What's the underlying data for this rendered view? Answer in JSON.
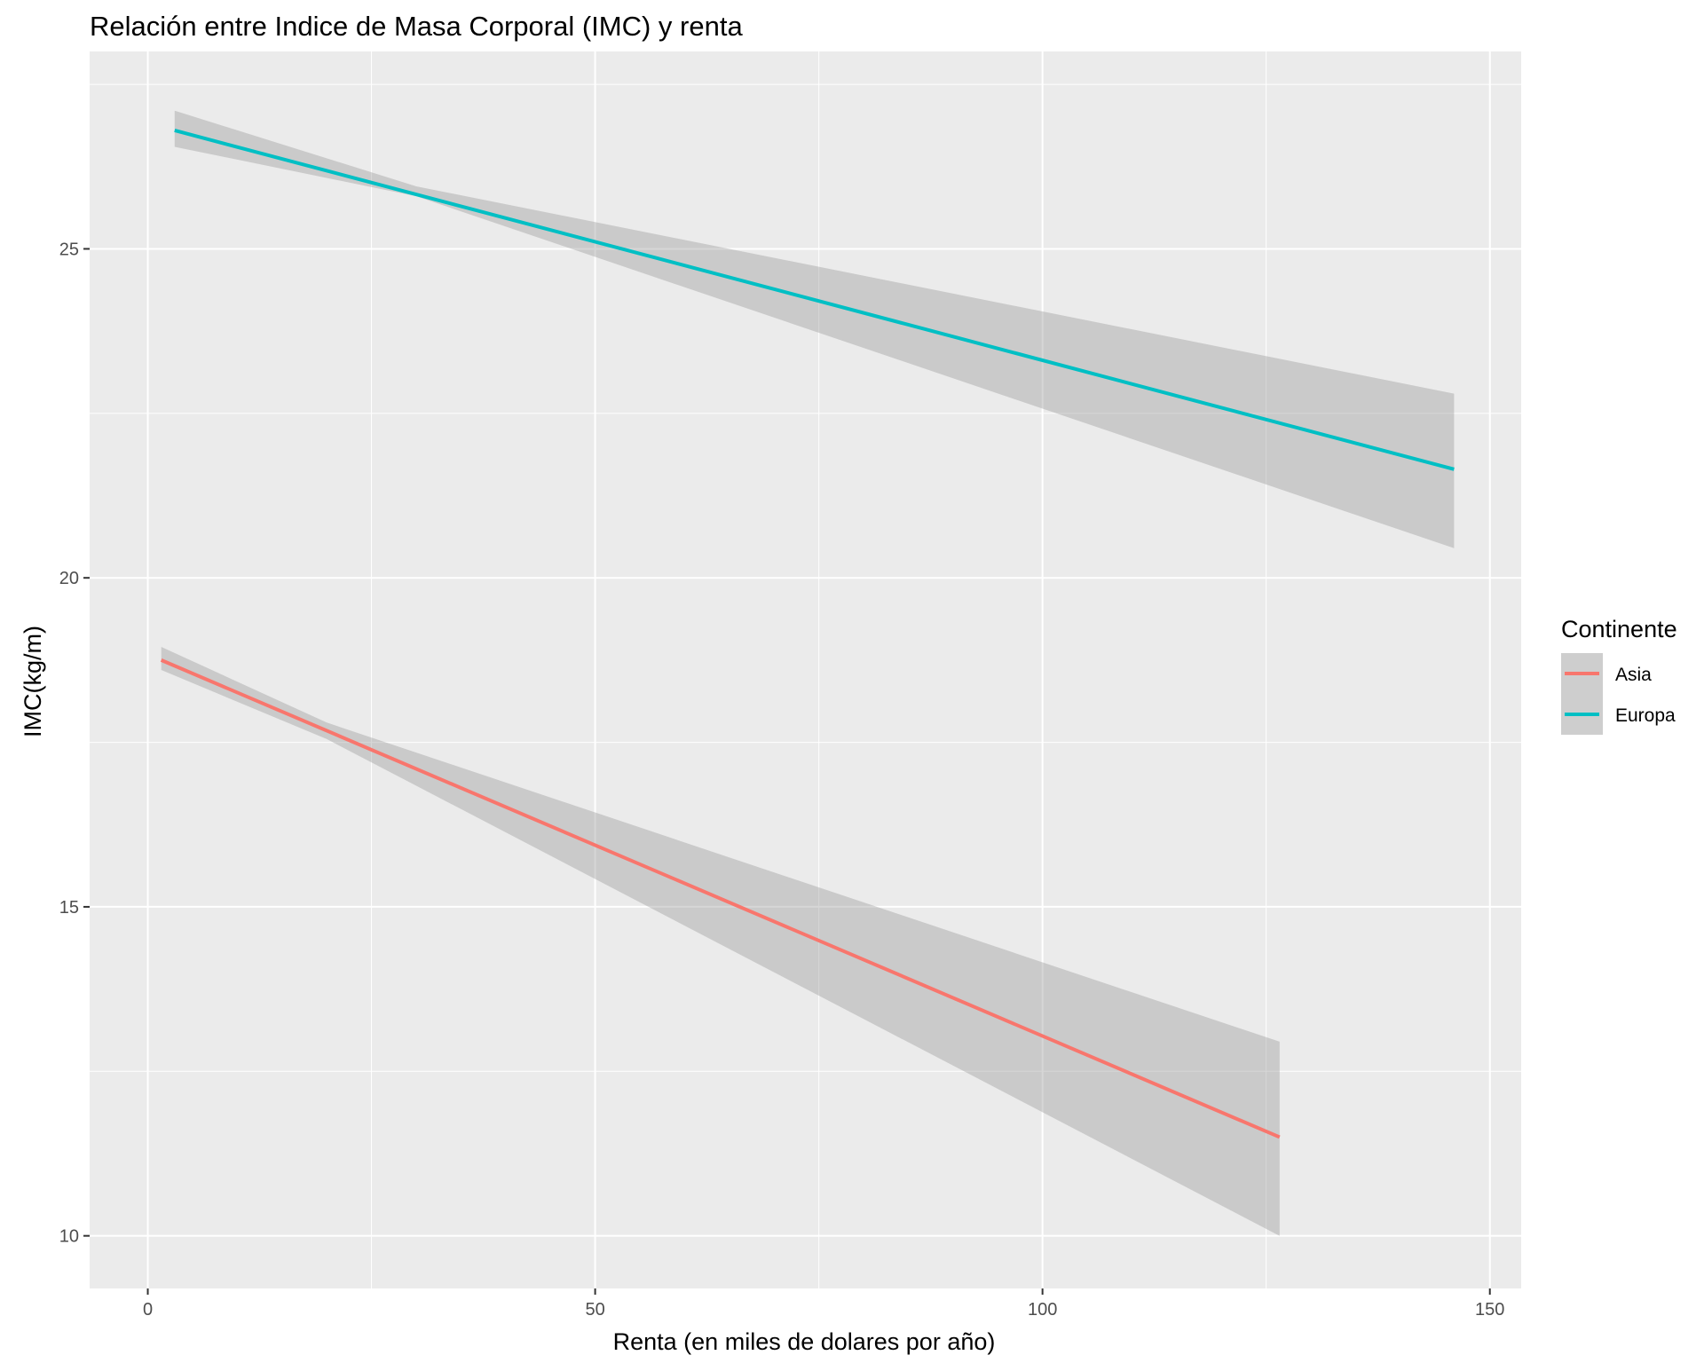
{
  "chart_data": {
    "type": "line",
    "title": "Relación entre Indice de Masa Corporal (IMC) y renta",
    "xlabel": "Renta (en miles de dolares por año)",
    "ylabel": "IMC(kg/m)",
    "xlim": [
      -6.5,
      153.5
    ],
    "ylim": [
      9.2,
      28.0
    ],
    "x_ticks": [
      0,
      50,
      100,
      150
    ],
    "x_tick_labels": [
      "0",
      "50",
      "100",
      "150"
    ],
    "x_minor_ticks": [
      25,
      75,
      125
    ],
    "y_ticks": [
      10,
      15,
      20,
      25
    ],
    "y_tick_labels": [
      "10",
      "15",
      "20",
      "25"
    ],
    "y_minor_ticks": [
      12.5,
      17.5,
      22.5,
      27.5
    ],
    "grid": true,
    "legend": {
      "title": "Continente",
      "position": "right"
    },
    "series": [
      {
        "name": "Asia",
        "color": "#F8766D",
        "x": [
          1.5,
          126.5
        ],
        "y": [
          18.75,
          11.5
        ],
        "ci_lower": [
          18.6,
          10.0
        ],
        "ci_upper": [
          18.95,
          12.95
        ],
        "ci_mid_x": 20,
        "ci_mid_lower": 17.55,
        "ci_mid_upper": 17.8
      },
      {
        "name": "Europa",
        "color": "#00BFC4",
        "x": [
          3.0,
          146.0
        ],
        "y": [
          26.8,
          21.65
        ],
        "ci_lower": [
          26.55,
          20.45
        ],
        "ci_upper": [
          27.1,
          22.8
        ],
        "ci_mid_x": 30,
        "ci_mid_lower": 25.8,
        "ci_mid_upper": 25.95
      }
    ],
    "ci_band_color": "#999999"
  }
}
